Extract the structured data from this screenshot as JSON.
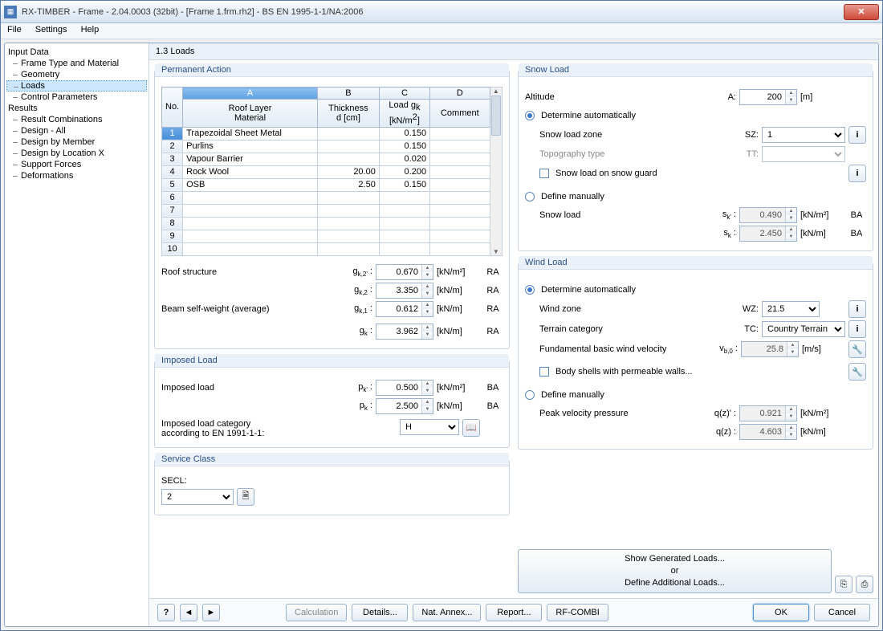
{
  "title": "RX-TIMBER - Frame - 2.04.0003 (32bit) - [Frame 1.frm.rh2] - BS EN 1995-1-1/NA:2006",
  "menu": {
    "file": "File",
    "settings": "Settings",
    "help": "Help"
  },
  "tree": {
    "input": "Input Data",
    "input_items": [
      "Frame Type and Material",
      "Geometry",
      "Loads",
      "Control Parameters"
    ],
    "results": "Results",
    "results_items": [
      "Result Combinations",
      "Design - All",
      "Design by Member",
      "Design by Location X",
      "Support Forces",
      "Deformations"
    ]
  },
  "page_title": "1.3 Loads",
  "perm": {
    "legend": "Permanent Action",
    "cols": {
      "no": "No.",
      "A": "A",
      "B": "B",
      "C": "C",
      "D": "D",
      "A2": "Roof Layer\nMaterial",
      "B2": "Thickness\nd [cm]",
      "C2l1": "Load g",
      "C2l2": "[kN/m",
      "D2": "Comment"
    },
    "rows": [
      {
        "n": "1",
        "mat": "Trapezoidal Sheet Metal",
        "d": "",
        "g": "0.150"
      },
      {
        "n": "2",
        "mat": "Purlins",
        "d": "",
        "g": "0.150"
      },
      {
        "n": "3",
        "mat": "Vapour Barrier",
        "d": "",
        "g": "0.020"
      },
      {
        "n": "4",
        "mat": "Rock Wool",
        "d": "20.00",
        "g": "0.200"
      },
      {
        "n": "5",
        "mat": "OSB",
        "d": "2.50",
        "g": "0.150"
      },
      {
        "n": "6",
        "mat": "",
        "d": "",
        "g": ""
      },
      {
        "n": "7",
        "mat": "",
        "d": "",
        "g": ""
      },
      {
        "n": "8",
        "mat": "",
        "d": "",
        "g": ""
      },
      {
        "n": "9",
        "mat": "",
        "d": "",
        "g": ""
      },
      {
        "n": "10",
        "mat": "",
        "d": "",
        "g": ""
      }
    ],
    "roof_structure": "Roof structure",
    "beam_self": "Beam self-weight (average)",
    "gk2p": "0.670",
    "gk2": "3.350",
    "gk1": "0.612",
    "gk": "3.962",
    "u1": "[kN/m²]",
    "u2": "[kN/m]",
    "ra": "RA"
  },
  "imp": {
    "legend": "Imposed Load",
    "label": "Imposed load",
    "pkp": "0.500",
    "pk": "2.500",
    "cat_label": "Imposed load category\naccording to EN 1991-1-1:",
    "cat": "H",
    "ba": "BA"
  },
  "svc": {
    "legend": "Service Class",
    "label": "SECL:",
    "val": "2"
  },
  "snow": {
    "legend": "Snow Load",
    "alt": "Altitude",
    "alt_sym": "A:",
    "alt_val": "200",
    "alt_u": "[m]",
    "auto": "Determine automatically",
    "zone": "Snow load zone",
    "zone_sym": "SZ:",
    "zone_val": "1",
    "topo": "Topography type",
    "topo_sym": "TT:",
    "guard": "Snow load on snow guard",
    "manual": "Define manually",
    "load": "Snow load",
    "skp": "0.490",
    "sk": "2.450",
    "ba": "BA"
  },
  "wind": {
    "legend": "Wind Load",
    "auto": "Determine automatically",
    "zone": "Wind zone",
    "zone_sym": "WZ:",
    "zone_val": "21.5",
    "terr": "Terrain category",
    "terr_sym": "TC:",
    "terr_val": "Country Terrain",
    "vel": "Fundamental basic wind velocity",
    "vel_sym_l": "v",
    "vel_sub": "b,0",
    "vel_val": "25.8",
    "vel_u": "[m/s]",
    "body": "Body shells with permeable walls...",
    "manual": "Define manually",
    "peak": "Peak velocity pressure",
    "qzp": "0.921",
    "qz": "4.603"
  },
  "gen": {
    "line1": "Show Generated Loads...",
    "line2": "or",
    "line3": "Define Additional Loads..."
  },
  "footer": {
    "calc": "Calculation",
    "details": "Details...",
    "annex": "Nat. Annex...",
    "report": "Report...",
    "combi": "RF-COMBI",
    "ok": "OK",
    "cancel": "Cancel"
  }
}
